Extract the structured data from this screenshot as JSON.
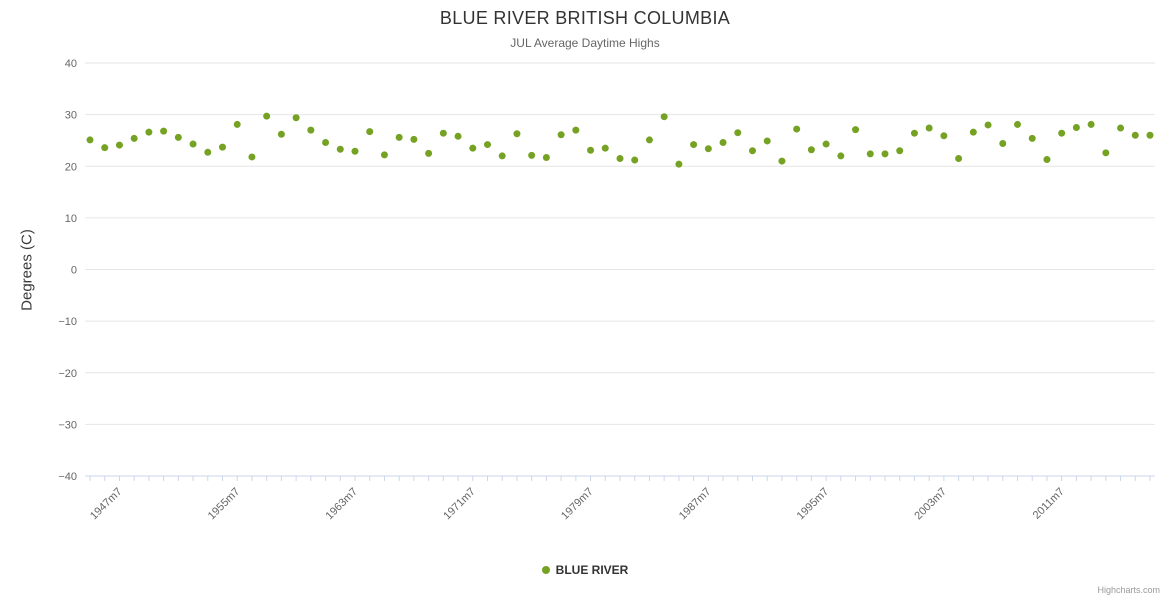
{
  "header": {
    "title": "BLUE RIVER BRITISH COLUMBIA",
    "subtitle": "JUL Average Daytime Highs"
  },
  "legend": {
    "label": "BLUE RIVER"
  },
  "credit": "Highcharts.com",
  "colors": {
    "point": "#76a224",
    "grid": "#e6e6e6",
    "axis": "#ccd6eb",
    "label": "#666666",
    "title": "#333333"
  },
  "chart_data": {
    "type": "scatter",
    "title": "BLUE RIVER BRITISH COLUMBIA",
    "subtitle": "JUL Average Daytime Highs",
    "xlabel": "",
    "ylabel": "Degrees (C)",
    "ylim": [
      -40,
      40
    ],
    "ytick_step": 10,
    "yticks": [
      -40,
      -30,
      -20,
      -10,
      0,
      10,
      20,
      30,
      40
    ],
    "grid": true,
    "legend_position": "bottom",
    "x_label_start": 1947,
    "x_label_interval": 8,
    "x_tick_labels": [
      "1947m7",
      "1955m7",
      "1963m7",
      "1971m7",
      "1979m7",
      "1987m7",
      "1995m7",
      "2003m7",
      "2011m7"
    ],
    "series": [
      {
        "name": "BLUE RIVER",
        "start_year": 1945,
        "suffix": "m7",
        "values": [
          25.1,
          23.6,
          24.1,
          25.4,
          26.6,
          26.8,
          25.6,
          24.3,
          22.7,
          23.7,
          28.1,
          21.8,
          29.7,
          26.2,
          29.4,
          27.0,
          24.6,
          23.3,
          22.9,
          26.7,
          22.2,
          25.6,
          25.2,
          22.5,
          26.4,
          25.8,
          23.5,
          24.2,
          22.0,
          26.3,
          22.1,
          21.7,
          26.1,
          27.0,
          23.1,
          23.5,
          21.5,
          21.2,
          25.1,
          29.6,
          20.4,
          24.2,
          23.4,
          24.6,
          26.5,
          23.0,
          24.9,
          21.0,
          27.2,
          23.2,
          24.3,
          22.0,
          27.1,
          22.4,
          22.4,
          23.0,
          26.4,
          27.4,
          25.9,
          21.5,
          26.6,
          28.0,
          24.4,
          28.1,
          25.4,
          21.3,
          26.4,
          27.5,
          28.1,
          22.6,
          27.4,
          26.0,
          26.0
        ]
      }
    ]
  }
}
